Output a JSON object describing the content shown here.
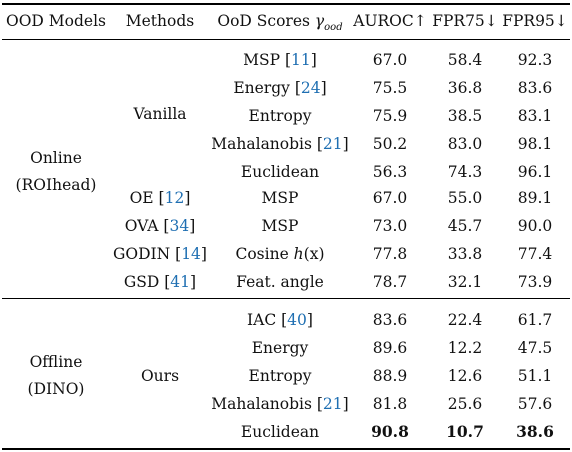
{
  "headers": {
    "models": "OOD Models",
    "methods": "Methods",
    "scores": "OoD Scores",
    "scores_symbol": "γ",
    "scores_sub": "ood",
    "auroc": "AUROC↑",
    "fpr75": "FPR75↓",
    "fpr95": "FPR95↓"
  },
  "groups": {
    "online_line1": "Online",
    "online_line2": "(ROIhead)",
    "offline_line1": "Offline",
    "offline_line2": "(DINO)"
  },
  "methods": {
    "vanilla": "Vanilla",
    "oe": "OE [",
    "oe_ref": "12",
    "ova": "OVA [",
    "ova_ref": "34",
    "godin": "GODIN [",
    "godin_ref": "14",
    "gsd": "GSD [",
    "gsd_ref": "41",
    "ours": "Ours",
    "close": "]"
  },
  "rows": [
    {
      "score": "MSP [",
      "ref": "11",
      "close": "]",
      "auroc": "67.0",
      "fpr75": "58.4",
      "fpr95": "92.3"
    },
    {
      "score": "Energy [",
      "ref": "24",
      "close": "]",
      "auroc": "75.5",
      "fpr75": "36.8",
      "fpr95": "83.6"
    },
    {
      "score": "Entropy",
      "ref": "",
      "close": "",
      "auroc": "75.9",
      "fpr75": "38.5",
      "fpr95": "83.1"
    },
    {
      "score": "Mahalanobis [",
      "ref": "21",
      "close": "]",
      "auroc": "50.2",
      "fpr75": "83.0",
      "fpr95": "98.1"
    },
    {
      "score": "Euclidean",
      "ref": "",
      "close": "",
      "auroc": "56.3",
      "fpr75": "74.3",
      "fpr95": "96.1"
    },
    {
      "score": "MSP",
      "ref": "",
      "close": "",
      "auroc": "67.0",
      "fpr75": "55.0",
      "fpr95": "89.1"
    },
    {
      "score": "MSP",
      "ref": "",
      "close": "",
      "auroc": "73.0",
      "fpr75": "45.7",
      "fpr95": "90.0"
    },
    {
      "score": "Cosine ",
      "func": "h",
      "args": "(x)",
      "auroc": "77.8",
      "fpr75": "33.8",
      "fpr95": "77.4"
    },
    {
      "score": "Feat. angle",
      "ref": "",
      "close": "",
      "auroc": "78.7",
      "fpr75": "32.1",
      "fpr95": "73.9"
    },
    {
      "score": "IAC [",
      "ref": "40",
      "close": "]",
      "auroc": "83.6",
      "fpr75": "22.4",
      "fpr95": "61.7"
    },
    {
      "score": "Energy",
      "ref": "",
      "close": "",
      "auroc": "89.6",
      "fpr75": "12.2",
      "fpr95": "47.5"
    },
    {
      "score": "Entropy",
      "ref": "",
      "close": "",
      "auroc": "88.9",
      "fpr75": "12.6",
      "fpr95": "51.1"
    },
    {
      "score": "Mahalanobis [",
      "ref": "21",
      "close": "]",
      "auroc": "81.8",
      "fpr75": "25.6",
      "fpr95": "57.6"
    },
    {
      "score": "Euclidean",
      "ref": "",
      "close": "",
      "auroc": "90.8",
      "fpr75": "10.7",
      "fpr95": "38.6"
    }
  ],
  "colors": {
    "reference": "#1f6fb2",
    "text": "#111111",
    "rule": "#000000"
  }
}
